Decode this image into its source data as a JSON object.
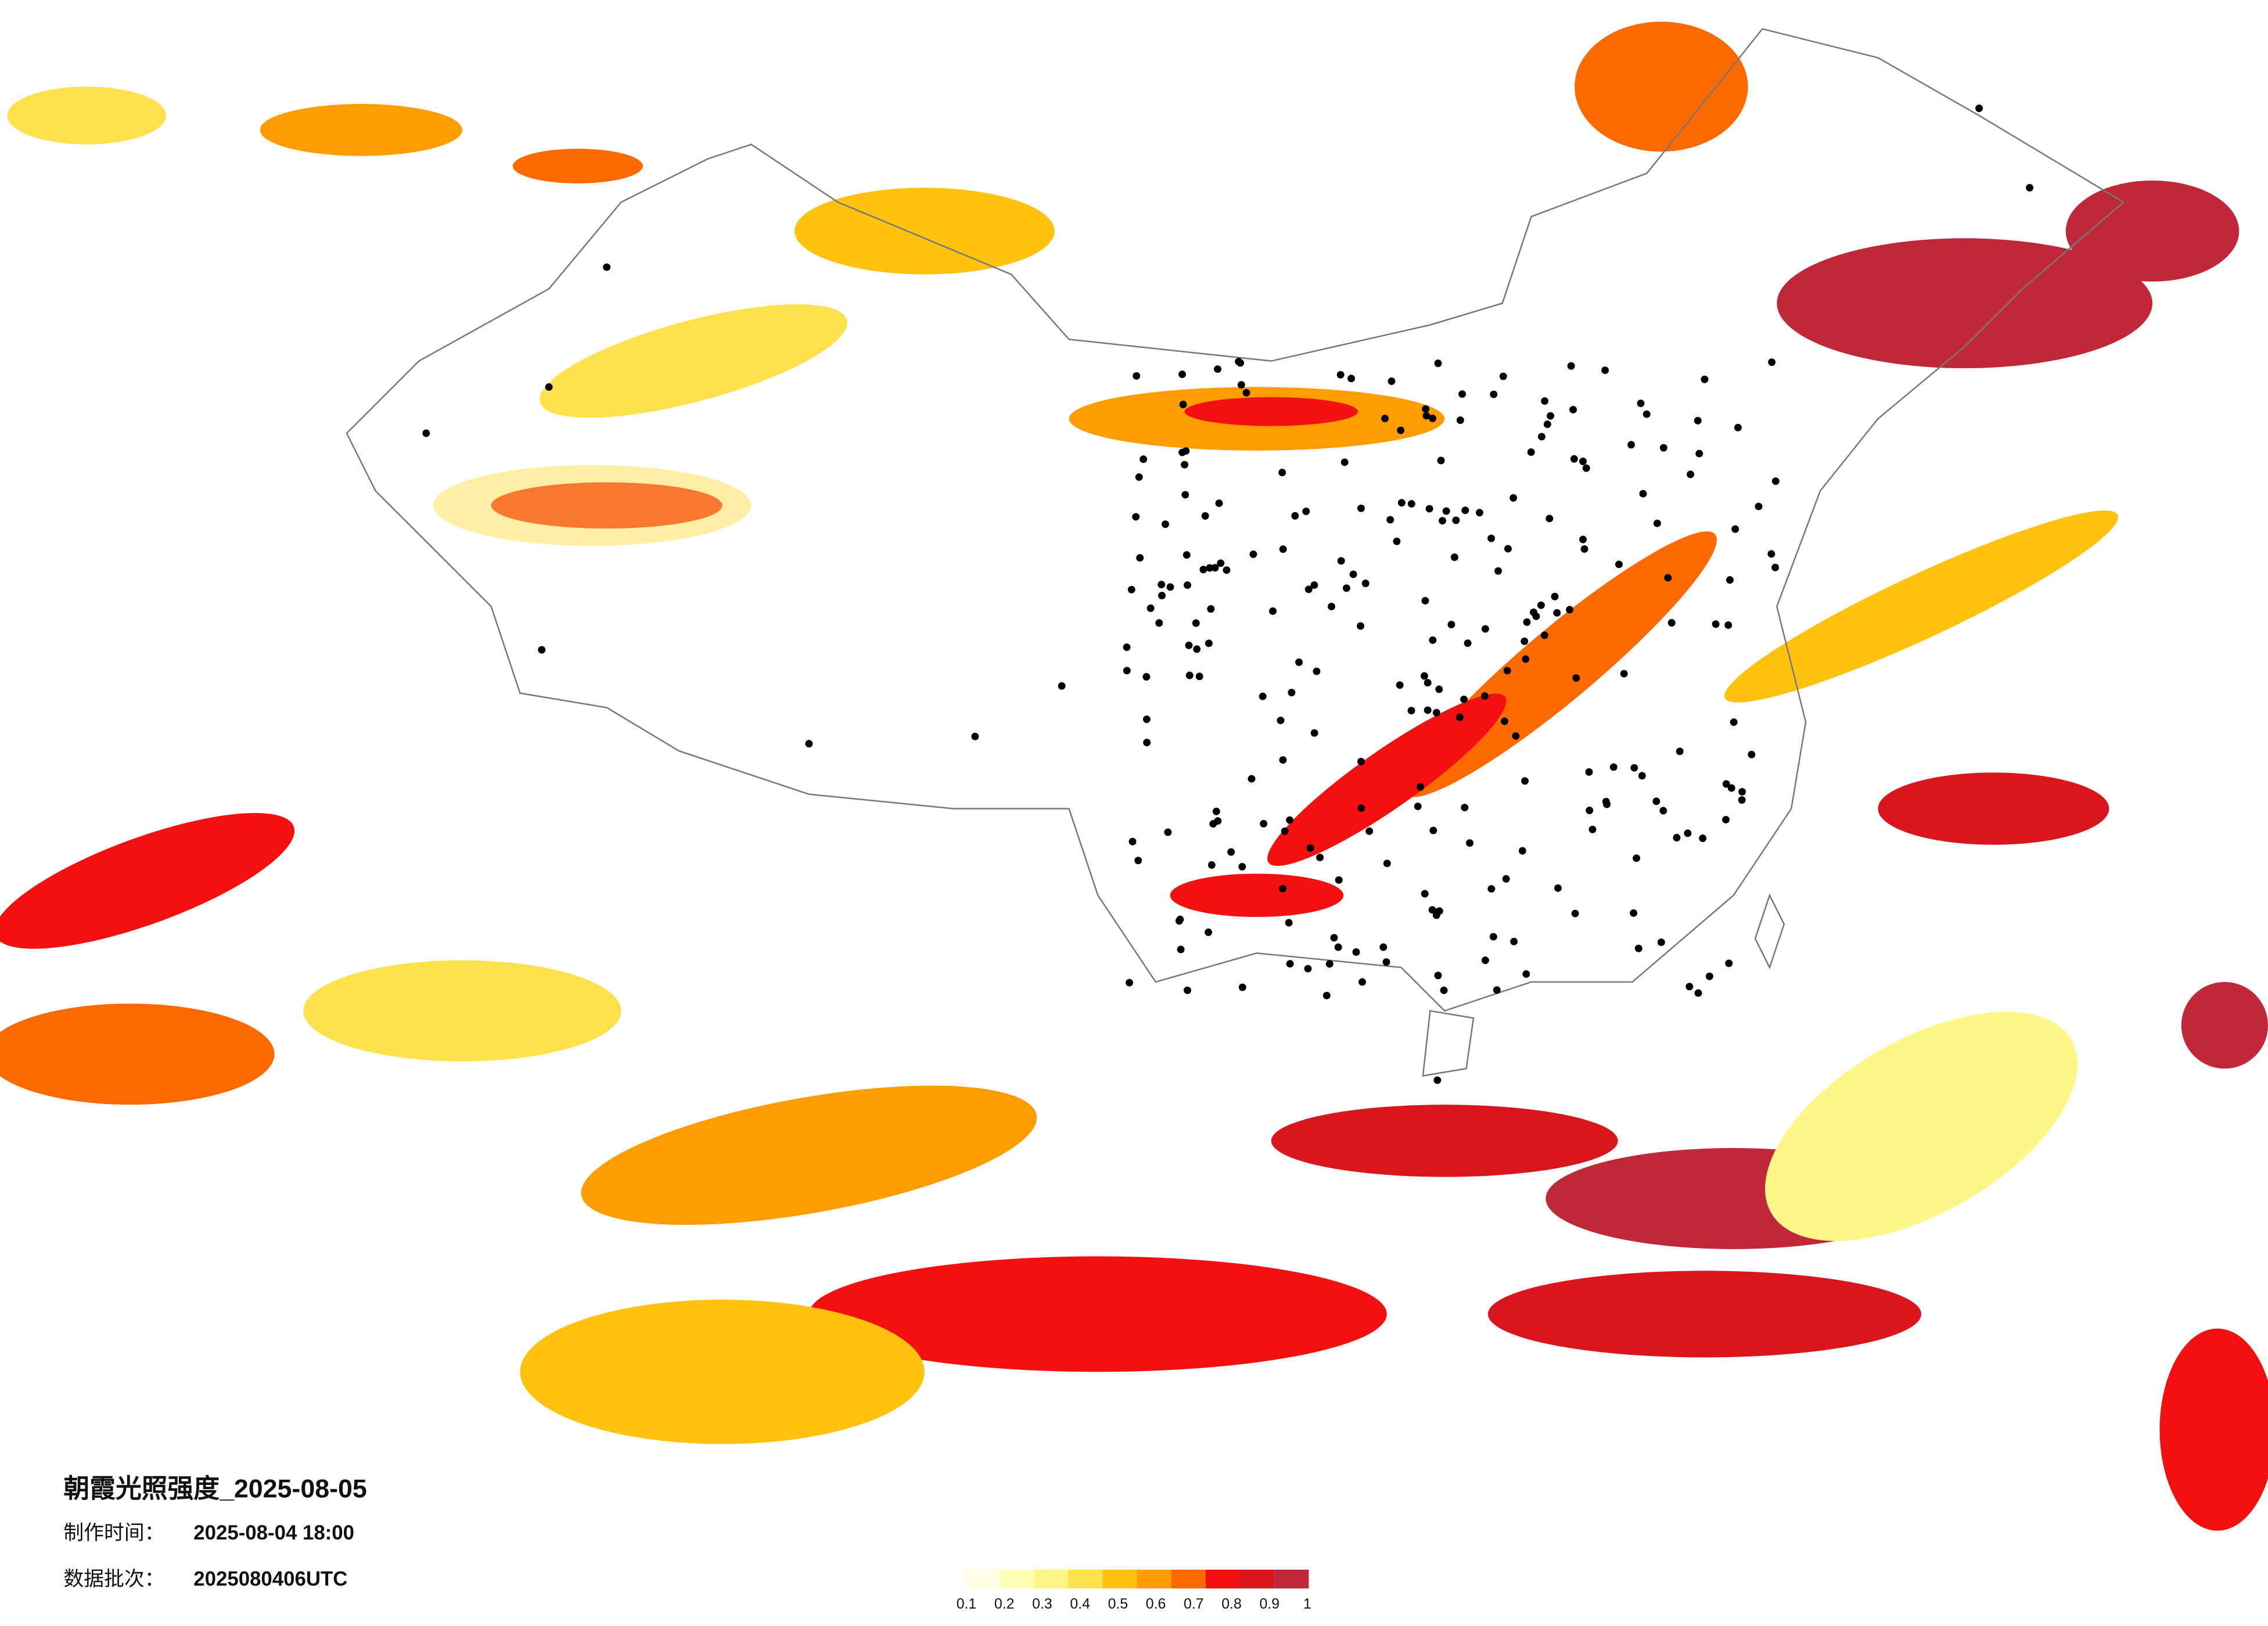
{
  "title": "朝霞光照强度_2025-08-05",
  "production": {
    "label": "制作时间：",
    "value": "2025-08-04 18:00"
  },
  "batch": {
    "label": "数据批次：",
    "value": "2025080406UTC"
  },
  "legend": {
    "colors": [
      "#fffde3",
      "#ffffb8",
      "#fff68a",
      "#ffe04d",
      "#ffc20e",
      "#ff9c00",
      "#ff6a00",
      "#f21010",
      "#d9161e",
      "#c0283a"
    ],
    "ticks": [
      0.1,
      0.2,
      0.3,
      0.4,
      0.5,
      0.6,
      0.7,
      0.8,
      0.9,
      1
    ]
  }
}
